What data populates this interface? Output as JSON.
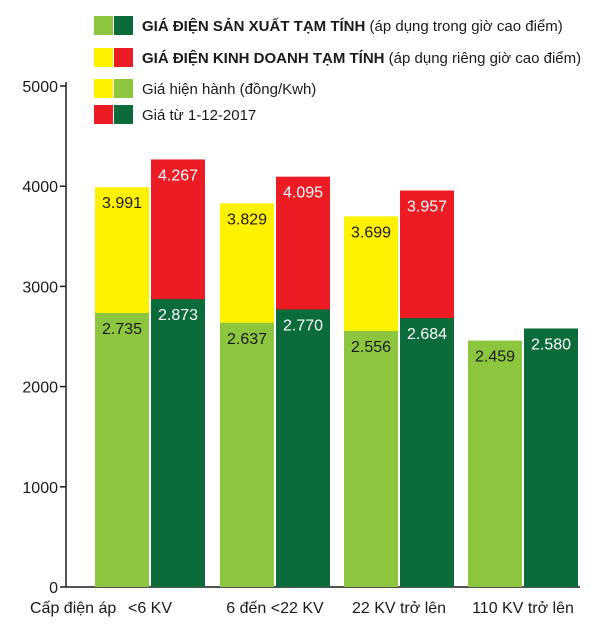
{
  "colors": {
    "production_current": "#8cc63f",
    "production_new": "#0b6b3a",
    "business_current": "#fff200",
    "business_new": "#ed1c24",
    "axis": "#1a1a1a"
  },
  "legend": [
    {
      "bold": "GIÁ ĐIỆN SẢN XUẤT TẠM TÍNH",
      "normal": " (áp dụng trong giờ cao điểm)",
      "swatches": [
        "#8cc63f",
        "#0b6b3a"
      ]
    },
    {
      "bold": "GIÁ ĐIỆN KINH DOANH TẠM TÍNH",
      "normal": " (áp dụng riêng giờ cao điểm)",
      "swatches": [
        "#fff200",
        "#ed1c24"
      ]
    },
    {
      "bold": "",
      "normal": "Giá hiện hành (đồng/Kwh)",
      "swatches": [
        "#fff200",
        "#8cc63f"
      ]
    },
    {
      "bold": "",
      "normal": "Giá từ 1-12-2017",
      "swatches": [
        "#ed1c24",
        "#0b6b3a"
      ]
    }
  ],
  "chart_data": {
    "type": "bar",
    "xlabel": "Cấp điện áp",
    "ylabel": "",
    "ylim": [
      0,
      5000
    ],
    "yticks": [
      0,
      1000,
      2000,
      3000,
      4000,
      5000
    ],
    "categories": [
      "<6 KV",
      "6 đến <22 KV",
      "22 KV trở lên",
      "110 KV trở lên"
    ],
    "series": [
      {
        "values": [
          2735,
          2637,
          2556,
          2459
        ],
        "labels": [
          "2.735",
          "2.637",
          "2.556",
          "2.459"
        ]
      },
      {
        "values": [
          2873,
          2770,
          2684,
          2580
        ],
        "labels": [
          "2.873",
          "2.770",
          "2.684",
          "2.580"
        ]
      },
      {
        "values": [
          3991,
          3829,
          3699,
          null
        ],
        "labels": [
          "3.991",
          "3.829",
          "3.699",
          ""
        ]
      },
      {
        "values": [
          4267,
          4095,
          3957,
          null
        ],
        "labels": [
          "4.267",
          "4.095",
          "3.957",
          ""
        ]
      }
    ],
    "grid": false,
    "legend_position": "top"
  }
}
